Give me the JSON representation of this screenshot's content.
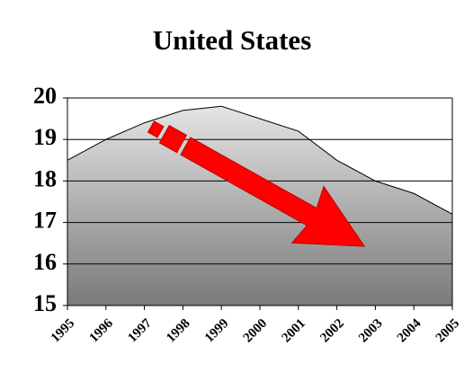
{
  "chart_data": {
    "type": "area",
    "title": "United States",
    "x": [
      1995,
      1996,
      1997,
      1998,
      1999,
      2000,
      2001,
      2002,
      2003,
      2004,
      2005
    ],
    "values": [
      18.5,
      19.0,
      19.4,
      19.7,
      19.8,
      19.5,
      19.2,
      18.5,
      18.0,
      17.7,
      17.2
    ],
    "xlim": [
      1995,
      2005
    ],
    "xticks": [
      1995,
      1996,
      1997,
      1998,
      1999,
      2000,
      2001,
      2002,
      2003,
      2004,
      2005
    ],
    "ylim": [
      15,
      20
    ],
    "yticks": [
      15,
      16,
      17,
      18,
      19,
      20
    ],
    "grid": true
  }
}
